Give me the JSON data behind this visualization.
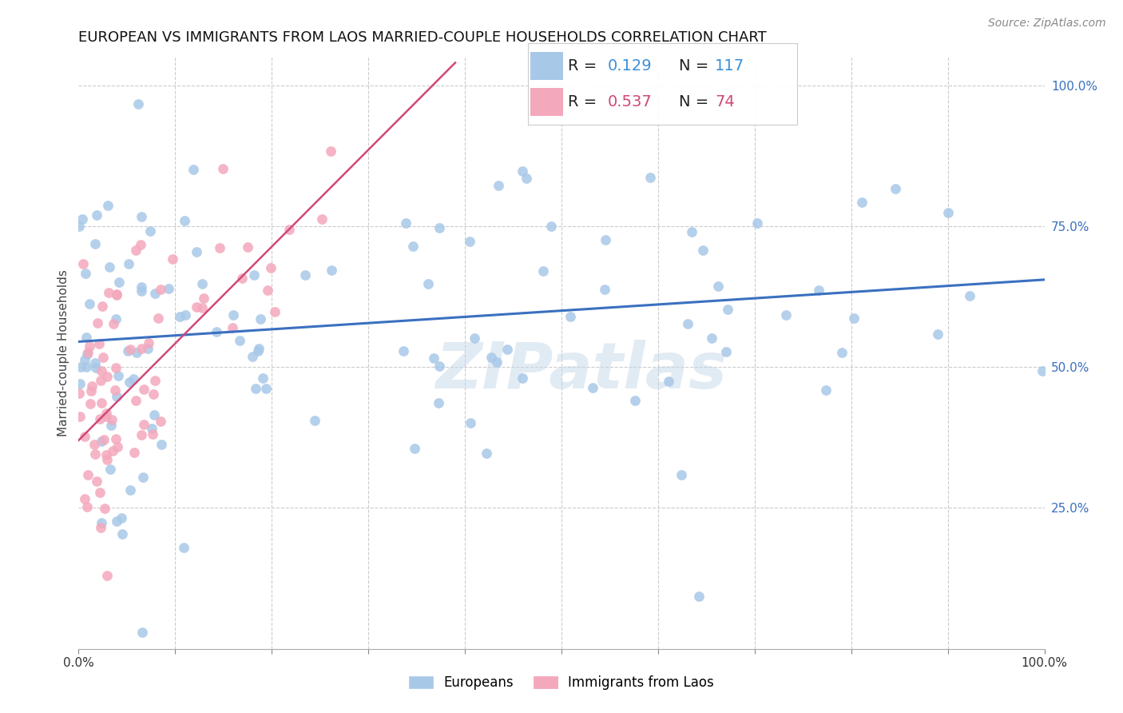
{
  "title": "EUROPEAN VS IMMIGRANTS FROM LAOS MARRIED-COUPLE HOUSEHOLDS CORRELATION CHART",
  "source": "Source: ZipAtlas.com",
  "ylabel": "Married-couple Households",
  "european_R": 0.129,
  "european_N": 117,
  "laos_R": 0.537,
  "laos_N": 74,
  "european_color": "#a8c8e8",
  "european_line_color": "#3a70c0",
  "laos_color": "#f4a8bc",
  "laos_line_color": "#d04878",
  "legend_R_color_european": "#3a90d9",
  "legend_R_color_laos": "#d04878",
  "legend_N_color_european": "#3a90d9",
  "legend_N_color_laos": "#3a90d9",
  "watermark": "ZIPatlas",
  "background_color": "#ffffff",
  "grid_color": "#cccccc",
  "title_fontsize": 13,
  "axis_fontsize": 11,
  "marker_size": 85,
  "xlim": [
    0.0,
    1.0
  ],
  "ylim": [
    0.0,
    1.05
  ],
  "eu_line_x0": 0.0,
  "eu_line_y0": 0.545,
  "eu_line_x1": 1.0,
  "eu_line_y1": 0.655,
  "la_line_x0": 0.0,
  "la_line_y0": 0.37,
  "la_line_x1": 0.39,
  "la_line_y1": 1.04
}
